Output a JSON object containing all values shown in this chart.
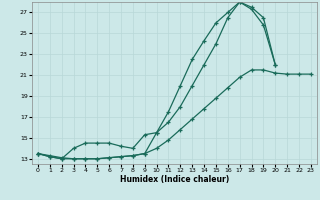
{
  "xlabel": "Humidex (Indice chaleur)",
  "bg_color": "#cce8e8",
  "grid_color": "#aacccc",
  "line_color": "#1a6b5a",
  "xlim": [
    -0.5,
    23.5
  ],
  "ylim": [
    12.5,
    28.0
  ],
  "xticks": [
    0,
    1,
    2,
    3,
    4,
    5,
    6,
    7,
    8,
    9,
    10,
    11,
    12,
    13,
    14,
    15,
    16,
    17,
    18,
    19,
    20,
    21,
    22,
    23
  ],
  "yticks": [
    13,
    15,
    17,
    19,
    21,
    23,
    25,
    27
  ],
  "line1_x": [
    0,
    1,
    2,
    3,
    4,
    5,
    6,
    7,
    8,
    9,
    10,
    11,
    12,
    13,
    14,
    15,
    16,
    17,
    18,
    19,
    20,
    21,
    22,
    23
  ],
  "line1_y": [
    13.5,
    13.3,
    13.1,
    13.0,
    13.0,
    13.0,
    13.1,
    13.2,
    13.3,
    13.5,
    14.0,
    14.8,
    15.8,
    16.8,
    17.8,
    18.8,
    19.8,
    20.8,
    21.5,
    21.5,
    21.2,
    21.1,
    21.1,
    21.1
  ],
  "line2_x": [
    0,
    1,
    2,
    3,
    4,
    5,
    6,
    7,
    8,
    9,
    10,
    11,
    12,
    13,
    14,
    15,
    16,
    17,
    18,
    19,
    20
  ],
  "line2_y": [
    13.5,
    13.2,
    13.0,
    13.0,
    13.0,
    13.0,
    13.1,
    13.2,
    13.3,
    13.5,
    15.5,
    17.5,
    20.0,
    22.5,
    24.3,
    26.0,
    27.0,
    28.0,
    27.3,
    25.8,
    22.0
  ],
  "line3_x": [
    0,
    1,
    2,
    3,
    4,
    5,
    6,
    7,
    8,
    9,
    10,
    11,
    12,
    13,
    14,
    15,
    16,
    17,
    18,
    19,
    20,
    21,
    22,
    23
  ],
  "line3_y": [
    13.5,
    13.2,
    13.0,
    14.0,
    14.5,
    14.5,
    14.5,
    14.2,
    14.0,
    15.3,
    15.5,
    16.5,
    18.0,
    20.0,
    22.0,
    24.0,
    26.5,
    28.0,
    27.5,
    26.5,
    22.0,
    null,
    null,
    null
  ]
}
